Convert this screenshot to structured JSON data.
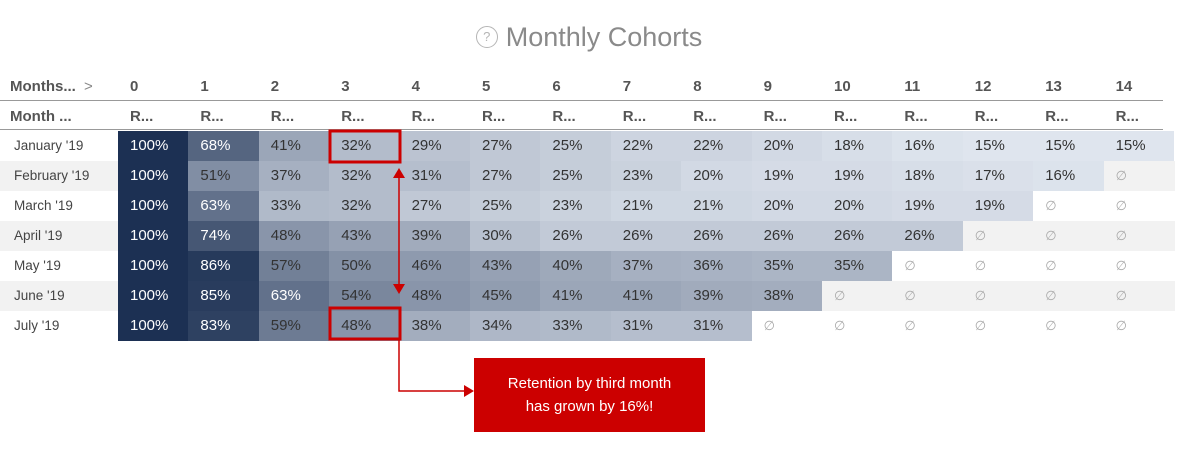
{
  "title": "Monthly Cohorts",
  "help_icon": "?",
  "months_header": "Months...",
  "months_chevron": ">",
  "month_header": "Month ...",
  "sub_header": "R...",
  "empty_symbol": "∅",
  "callout": {
    "line1": "Retention by third month",
    "line2": "has grown by 16%!"
  },
  "colors": {
    "dark": "#1c3053",
    "light": "#dfe5ee",
    "highlight": "#cc0000",
    "stripe": "#f2f2f2"
  },
  "chart_data": {
    "type": "heatmap",
    "title": "Monthly Cohorts",
    "columns": [
      "0",
      "1",
      "2",
      "3",
      "4",
      "5",
      "6",
      "7",
      "8",
      "9",
      "10",
      "11",
      "12",
      "13",
      "14"
    ],
    "rows": [
      {
        "label": "January '19",
        "values": [
          100,
          68,
          41,
          32,
          29,
          27,
          25,
          22,
          22,
          20,
          18,
          16,
          15,
          15,
          15
        ]
      },
      {
        "label": "February '19",
        "values": [
          100,
          51,
          37,
          32,
          31,
          27,
          25,
          23,
          20,
          19,
          19,
          18,
          17,
          16,
          null
        ]
      },
      {
        "label": "March '19",
        "values": [
          100,
          63,
          33,
          32,
          27,
          25,
          23,
          21,
          21,
          20,
          20,
          19,
          19,
          null,
          null
        ]
      },
      {
        "label": "April '19",
        "values": [
          100,
          74,
          48,
          43,
          39,
          30,
          26,
          26,
          26,
          26,
          26,
          26,
          null,
          null,
          null
        ]
      },
      {
        "label": "May '19",
        "values": [
          100,
          86,
          57,
          50,
          46,
          43,
          40,
          37,
          36,
          35,
          35,
          null,
          null,
          null,
          null
        ]
      },
      {
        "label": "June '19",
        "values": [
          100,
          85,
          63,
          54,
          48,
          45,
          41,
          41,
          39,
          38,
          null,
          null,
          null,
          null,
          null
        ]
      },
      {
        "label": "July '19",
        "values": [
          100,
          83,
          59,
          48,
          38,
          34,
          33,
          31,
          31,
          null,
          null,
          null,
          null,
          null,
          null
        ]
      }
    ],
    "unit": "%",
    "highlighted_cells": [
      {
        "row": "January '19",
        "column": "3"
      },
      {
        "row": "July '19",
        "column": "3"
      }
    ]
  }
}
